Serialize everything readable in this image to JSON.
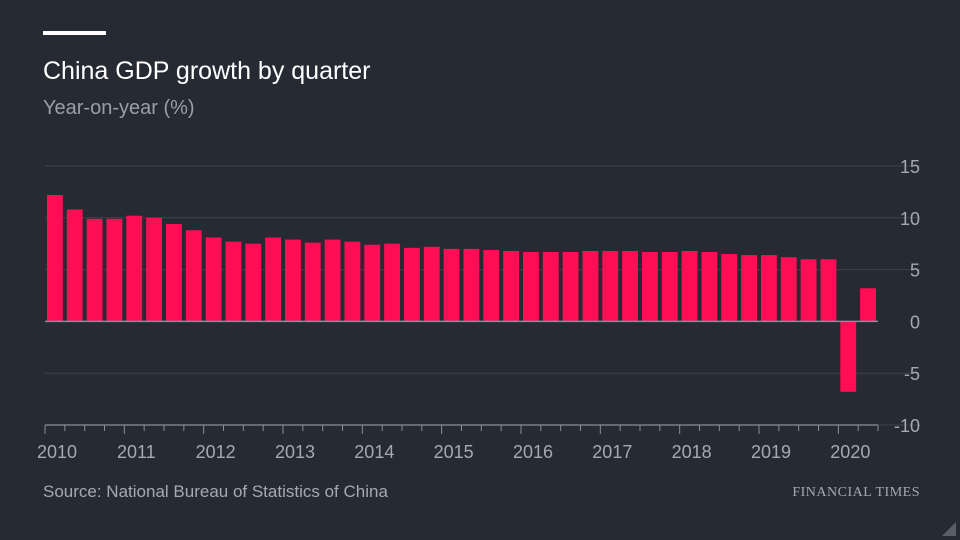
{
  "header": {
    "title": "China GDP growth by quarter",
    "subtitle": "Year-on-year (%)"
  },
  "footer": {
    "source": "Source: National Bureau of Statistics of China",
    "brand": "FINANCIAL TIMES"
  },
  "colors": {
    "background": "#262a33",
    "bar": "#ff0d55",
    "gridline": "#3e424b",
    "zero_line": "#8a8e96",
    "axis_text": "#a6a9b0"
  },
  "chart_data": {
    "type": "bar",
    "title": "China GDP growth by quarter",
    "subtitle": "Year-on-year (%)",
    "ylim": [
      -10,
      15
    ],
    "yticks": [
      15,
      10,
      5,
      0,
      -5,
      -10
    ],
    "y_axis_position": "right",
    "grid": true,
    "xticklabels": [
      "2010",
      "2011",
      "2012",
      "2013",
      "2014",
      "2015",
      "2016",
      "2017",
      "2018",
      "2019",
      "2020"
    ],
    "quarters_per_year": 4,
    "values": [
      12.2,
      10.8,
      9.9,
      9.9,
      10.2,
      10.0,
      9.4,
      8.8,
      8.1,
      7.7,
      7.5,
      8.1,
      7.9,
      7.6,
      7.9,
      7.7,
      7.4,
      7.5,
      7.1,
      7.2,
      7.0,
      7.0,
      6.9,
      6.8,
      6.7,
      6.7,
      6.7,
      6.8,
      6.8,
      6.8,
      6.7,
      6.7,
      6.8,
      6.7,
      6.5,
      6.4,
      6.4,
      6.2,
      6.0,
      6.0,
      -6.8,
      3.2
    ]
  }
}
